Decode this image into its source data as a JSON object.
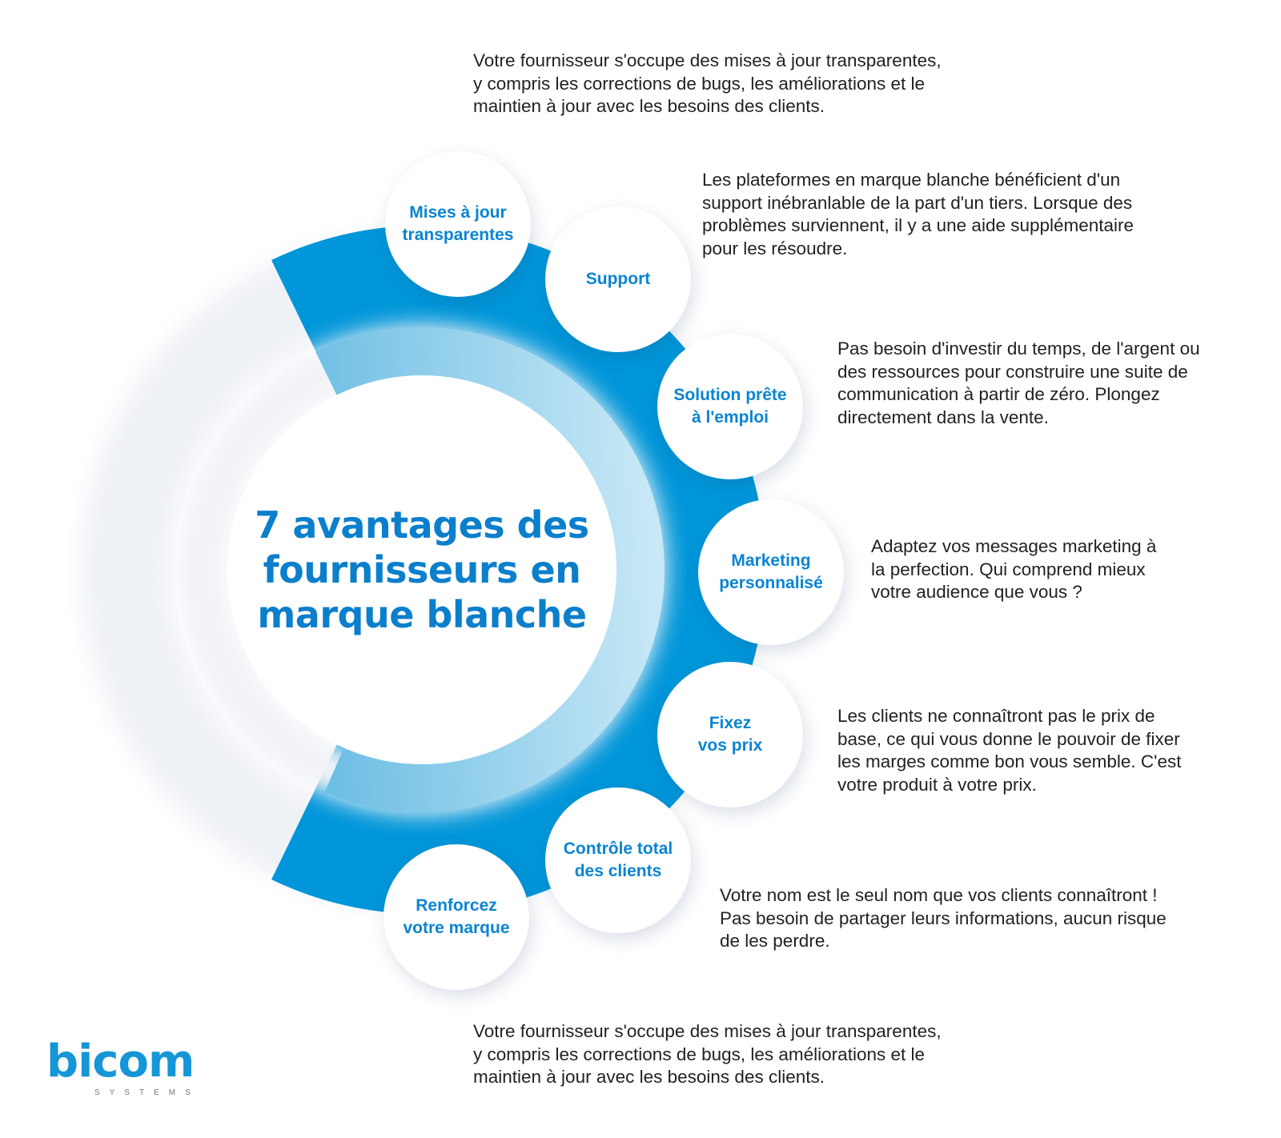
{
  "title": [
    "7 avantages des",
    "fournisseurs en",
    "marque blanche"
  ],
  "colors": {
    "primary_blue": "#0096d9",
    "title_blue": "#0b7fcc",
    "ring_light": "#7ec8e8"
  },
  "bubbles": [
    {
      "label": [
        "Mises à jour",
        "transparentes"
      ]
    },
    {
      "label": [
        "Support"
      ]
    },
    {
      "label": [
        "Solution prête",
        "à l'emploi"
      ]
    },
    {
      "label": [
        "Marketing",
        "personnalisé"
      ]
    },
    {
      "label": [
        "Fixez",
        "vos prix"
      ]
    },
    {
      "label": [
        "Contrôle total",
        "des clients"
      ]
    },
    {
      "label": [
        "Renforcez",
        "votre marque"
      ]
    }
  ],
  "descriptions": {
    "top": [
      "Votre fournisseur s'occupe des mises à jour transparentes,",
      "y compris les corrections de bugs, les améliorations et le",
      "maintien à jour avec les besoins des clients."
    ],
    "support": [
      "Les plateformes en marque blanche bénéficient d'un",
      "support inébranlable de la part d'un tiers. Lorsque des",
      "problèmes surviennent, il y a une aide supplémentaire",
      "pour les résoudre."
    ],
    "solution": [
      "Pas besoin d'investir du temps, de l'argent ou",
      "des ressources pour construire une suite de",
      "communication à partir de zéro. Plongez",
      "directement dans la vente."
    ],
    "marketing": [
      "Adaptez vos messages marketing à",
      "la perfection. Qui comprend mieux",
      "votre audience que vous ?"
    ],
    "prix": [
      "Les clients ne connaîtront pas le prix de",
      "base, ce qui vous donne le pouvoir de fixer",
      "les marges comme bon vous semble. C'est",
      "votre produit à votre prix."
    ],
    "controle": [
      "Votre nom est le seul nom que vos clients connaîtront !",
      "Pas besoin de partager leurs informations, aucun risque",
      "de les perdre."
    ],
    "bottom": [
      "Votre fournisseur s'occupe des mises à jour transparentes,",
      "y compris les corrections de bugs, les améliorations et le",
      "maintien à jour avec les besoins des clients."
    ]
  },
  "logo": {
    "word": "bicom",
    "sub": "SYSTEMS"
  }
}
